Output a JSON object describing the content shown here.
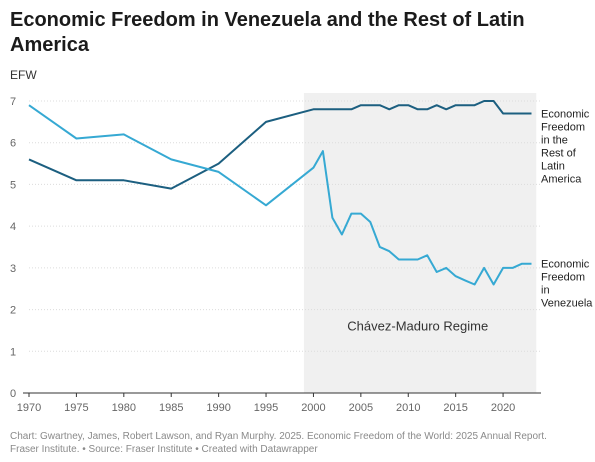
{
  "title": "Economic Freedom in Venezuela and the Rest of Latin America",
  "caption_line1": "Chart: Gwartney, James, Robert Lawson, and Ryan Murphy. 2025. Economic Freedom of the World: 2025 Annual Report.",
  "caption_line2": "Fraser Institute. • Source: Fraser Institute • Created with Datawrapper",
  "chart_data": {
    "type": "line",
    "title": "Economic Freedom in Venezuela and the Rest of Latin America",
    "ylabel": "EFW",
    "xlabel": "",
    "xlim": [
      1970,
      2024
    ],
    "ylim": [
      0,
      7
    ],
    "x_ticks": [
      1970,
      1975,
      1980,
      1985,
      1990,
      1995,
      2000,
      2005,
      2010,
      2015,
      2020
    ],
    "y_ticks": [
      0,
      1,
      2,
      3,
      4,
      5,
      6,
      7
    ],
    "grid": "horizontal",
    "legend": "direct labels at line ends",
    "shaded_region": {
      "label": "Chávez-Maduro Regime",
      "x_start": 1999,
      "x_end": 2023,
      "color": "#f0f0f0"
    },
    "series": [
      {
        "name": "Economic Freedom in the Rest of Latin America",
        "label_lines": [
          "Economic",
          "Freedom",
          "in the",
          "Rest of",
          "Latin",
          "America"
        ],
        "color": "#1c5f80",
        "x": [
          1970,
          1975,
          1980,
          1985,
          1990,
          1995,
          2000,
          2001,
          2002,
          2003,
          2004,
          2005,
          2006,
          2007,
          2008,
          2009,
          2010,
          2011,
          2012,
          2013,
          2014,
          2015,
          2016,
          2017,
          2018,
          2019,
          2020,
          2021,
          2022,
          2023
        ],
        "values": [
          5.6,
          5.1,
          5.1,
          4.9,
          5.5,
          6.5,
          6.8,
          6.8,
          6.8,
          6.8,
          6.8,
          6.9,
          6.9,
          6.9,
          6.8,
          6.9,
          6.9,
          6.8,
          6.8,
          6.9,
          6.8,
          6.9,
          6.9,
          6.9,
          7.0,
          7.0,
          6.7,
          6.7,
          6.7,
          6.7
        ]
      },
      {
        "name": "Economic Freedom in Venezuela",
        "label_lines": [
          "Economic",
          "Freedom",
          "in",
          "Venezuela"
        ],
        "color": "#36a9d3",
        "x": [
          1970,
          1975,
          1980,
          1985,
          1990,
          1995,
          2000,
          2001,
          2002,
          2003,
          2004,
          2005,
          2006,
          2007,
          2008,
          2009,
          2010,
          2011,
          2012,
          2013,
          2014,
          2015,
          2016,
          2017,
          2018,
          2019,
          2020,
          2021,
          2022,
          2023
        ],
        "values": [
          6.9,
          6.1,
          6.2,
          5.6,
          5.3,
          4.5,
          5.4,
          5.8,
          4.2,
          3.8,
          4.3,
          4.3,
          4.1,
          3.5,
          3.4,
          3.2,
          3.2,
          3.2,
          3.3,
          2.9,
          3.0,
          2.8,
          2.7,
          2.6,
          3.0,
          2.6,
          3.0,
          3.0,
          3.1,
          3.1
        ]
      }
    ]
  }
}
